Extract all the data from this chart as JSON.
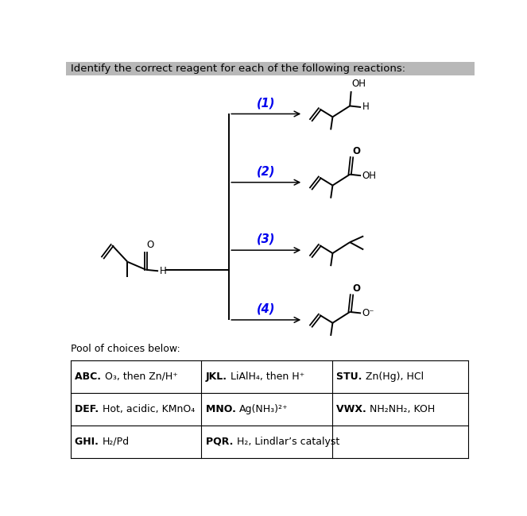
{
  "title": "Identify the correct reagent for each of the following reactions:",
  "title_bg": "#b8b8b8",
  "pool_label": "Pool of choices below:",
  "reactions": [
    "(1)",
    "(2)",
    "(3)",
    "(4)"
  ],
  "reaction_color": "#0000ee",
  "figsize": [
    6.63,
    6.5
  ],
  "dpi": 100,
  "table_rows": [
    [
      [
        "ABC. ",
        "O₃, then Zn/H⁺"
      ],
      [
        "JKL. ",
        "LiAlH₄, then H⁺"
      ],
      [
        "STU. ",
        "Zn(Hg), HCl"
      ]
    ],
    [
      [
        "DEF. ",
        "Hot, acidic, KMnO₄"
      ],
      [
        "MNO. ",
        "Ag(NH₃)²⁺"
      ],
      [
        "VWX. ",
        "NH₂NH₂, KOH"
      ]
    ],
    [
      [
        "GHI. ",
        "H₂/Pd"
      ],
      [
        "PQR. ",
        "H₂, Lindlar’s catalyst"
      ],
      [
        "",
        ""
      ]
    ]
  ]
}
